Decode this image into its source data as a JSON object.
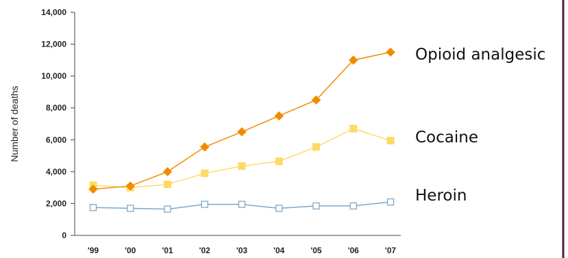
{
  "chart_data": {
    "type": "line",
    "ylabel": "Number of deaths",
    "categories": [
      "'99",
      "'00",
      "'01",
      "'02",
      "'03",
      "'04",
      "'05",
      "'06",
      "'07"
    ],
    "yticks": [
      "0",
      "2,000",
      "4,000",
      "6,000",
      "8,000",
      "10,000",
      "12,000",
      "14,000"
    ],
    "ylim": [
      0,
      14000
    ],
    "grid": false,
    "series": [
      {
        "name": "Opioid analgesic",
        "marker": "diamond",
        "color": "#F08C00",
        "values": [
          2900,
          3100,
          4000,
          5550,
          6500,
          7500,
          8500,
          11000,
          11500
        ]
      },
      {
        "name": "Cocaine",
        "marker": "square-filled",
        "color": "#FFD966",
        "values": [
          3150,
          3000,
          3200,
          3900,
          4350,
          4650,
          5550,
          6700,
          5950
        ]
      },
      {
        "name": "Heroin",
        "marker": "square-open",
        "color": "#7BA7C8",
        "values": [
          1750,
          1700,
          1650,
          1950,
          1950,
          1700,
          1850,
          1850,
          2100
        ]
      }
    ]
  }
}
